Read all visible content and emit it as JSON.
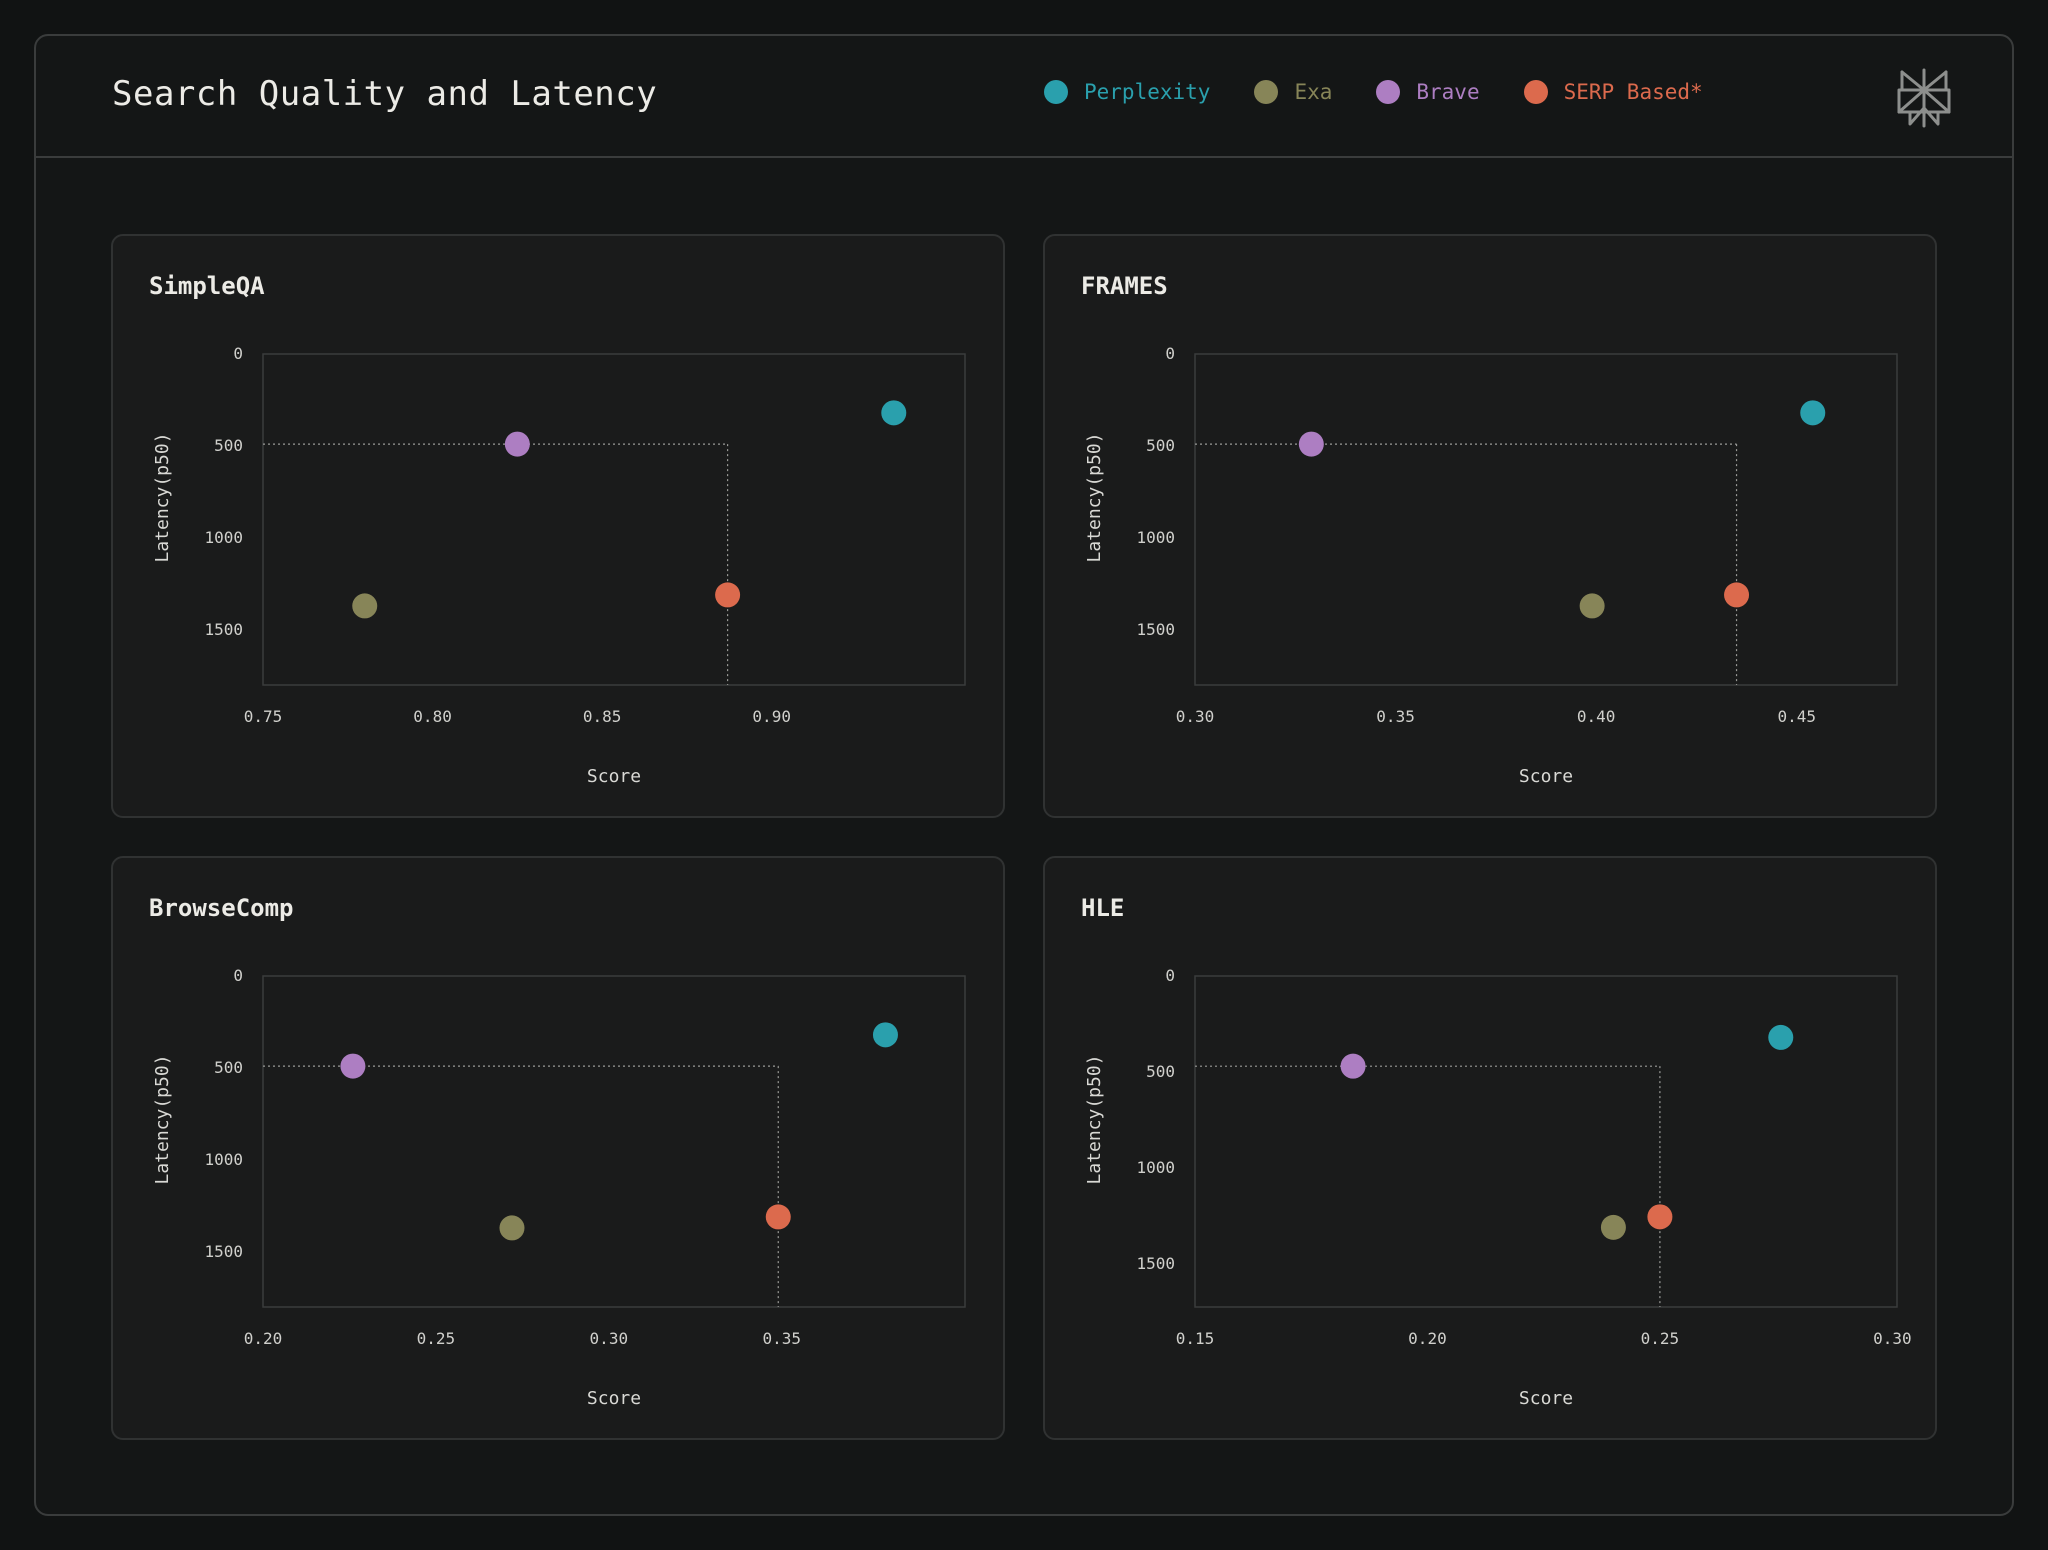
{
  "header": {
    "title": "Search Quality and Latency"
  },
  "legend": [
    {
      "label": "Perplexity",
      "color": "#2aa0ad"
    },
    {
      "label": "Exa",
      "color": "#878558"
    },
    {
      "label": "Brave",
      "color": "#ad7ec2"
    },
    {
      "label": "SERP Based*",
      "color": "#dc6a4d"
    }
  ],
  "logo": {
    "icon": "perplexity-logo-icon"
  },
  "chart_data": [
    {
      "type": "scatter",
      "title": "SimpleQA",
      "xlabel": "Score",
      "ylabel": "Latency(p50)",
      "xlim": [
        0.75,
        0.957
      ],
      "ylim": [
        0,
        1800
      ],
      "y_inverted": true,
      "xticks": [
        0.75,
        0.8,
        0.85,
        0.9
      ],
      "xtick_labels": [
        "0.75",
        "0.80",
        "0.85",
        "0.90"
      ],
      "yticks": [
        0,
        500,
        1000,
        1500
      ],
      "ytick_labels": [
        "0",
        "500",
        "1000",
        "1500"
      ],
      "series": [
        {
          "name": "Perplexity",
          "color": "#2aa0ad",
          "x": 0.936,
          "y": 320
        },
        {
          "name": "Exa",
          "color": "#878558",
          "x": 0.78,
          "y": 1370
        },
        {
          "name": "Brave",
          "color": "#ad7ec2",
          "x": 0.825,
          "y": 490
        },
        {
          "name": "SERP Based*",
          "color": "#dc6a4d",
          "x": 0.887,
          "y": 1310
        }
      ],
      "reference": {
        "x": 0.887,
        "y": 490
      }
    },
    {
      "type": "scatter",
      "title": "FRAMES",
      "xlabel": "Score",
      "ylabel": "Latency(p50)",
      "xlim": [
        0.3,
        0.475
      ],
      "ylim": [
        0,
        1800
      ],
      "y_inverted": true,
      "xticks": [
        0.3,
        0.35,
        0.4,
        0.45
      ],
      "xtick_labels": [
        "0.30",
        "0.35",
        "0.40",
        "0.45"
      ],
      "yticks": [
        0,
        500,
        1000,
        1500
      ],
      "ytick_labels": [
        "0",
        "500",
        "1000",
        "1500"
      ],
      "series": [
        {
          "name": "Perplexity",
          "color": "#2aa0ad",
          "x": 0.454,
          "y": 320
        },
        {
          "name": "Exa",
          "color": "#878558",
          "x": 0.399,
          "y": 1370
        },
        {
          "name": "Brave",
          "color": "#ad7ec2",
          "x": 0.329,
          "y": 490
        },
        {
          "name": "SERP Based*",
          "color": "#dc6a4d",
          "x": 0.435,
          "y": 1310
        }
      ],
      "reference": {
        "x": 0.435,
        "y": 490
      }
    },
    {
      "type": "scatter",
      "title": "BrowseComp",
      "xlabel": "Score",
      "ylabel": "Latency(p50)",
      "xlim": [
        0.2,
        0.403
      ],
      "ylim": [
        0,
        1800
      ],
      "y_inverted": true,
      "xticks": [
        0.2,
        0.25,
        0.3,
        0.35
      ],
      "xtick_labels": [
        "0.20",
        "0.25",
        "0.30",
        "0.35"
      ],
      "yticks": [
        0,
        500,
        1000,
        1500
      ],
      "ytick_labels": [
        "0",
        "500",
        "1000",
        "1500"
      ],
      "series": [
        {
          "name": "Perplexity",
          "color": "#2aa0ad",
          "x": 0.38,
          "y": 320
        },
        {
          "name": "Exa",
          "color": "#878558",
          "x": 0.272,
          "y": 1370
        },
        {
          "name": "Brave",
          "color": "#ad7ec2",
          "x": 0.226,
          "y": 490
        },
        {
          "name": "SERP Based*",
          "color": "#dc6a4d",
          "x": 0.349,
          "y": 1310
        }
      ],
      "reference": {
        "x": 0.349,
        "y": 490
      }
    },
    {
      "type": "scatter",
      "title": "HLE",
      "xlabel": "Score",
      "ylabel": "Latency(p50)",
      "xlim": [
        0.15,
        0.301
      ],
      "ylim": [
        0,
        1725
      ],
      "y_inverted": true,
      "xticks": [
        0.15,
        0.2,
        0.25,
        0.3
      ],
      "xtick_labels": [
        "0.15",
        "0.20",
        "0.25",
        "0.30"
      ],
      "yticks": [
        0,
        500,
        1000,
        1500
      ],
      "ytick_labels": [
        "0",
        "500",
        "1000",
        "1500"
      ],
      "series": [
        {
          "name": "Perplexity",
          "color": "#2aa0ad",
          "x": 0.276,
          "y": 320
        },
        {
          "name": "Exa",
          "color": "#878558",
          "x": 0.24,
          "y": 1310
        },
        {
          "name": "Brave",
          "color": "#ad7ec2",
          "x": 0.184,
          "y": 470
        },
        {
          "name": "SERP Based*",
          "color": "#dc6a4d",
          "x": 0.25,
          "y": 1255
        }
      ],
      "reference": {
        "x": 0.25,
        "y": 470
      }
    }
  ]
}
